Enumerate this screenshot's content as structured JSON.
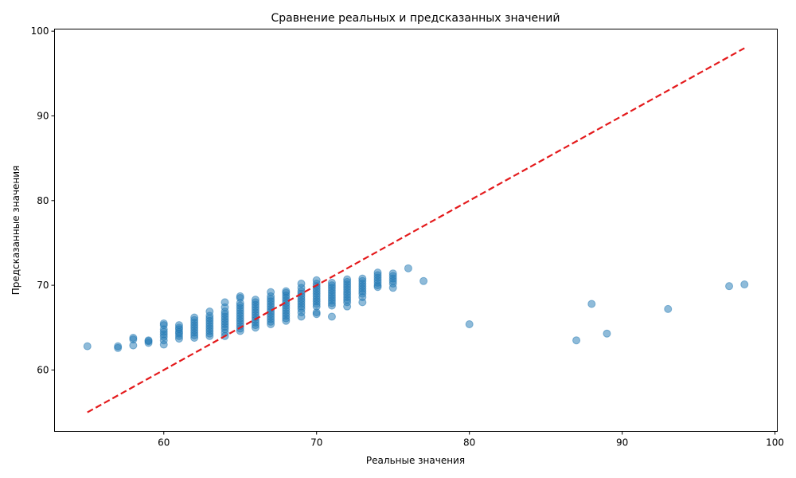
{
  "chart_data": {
    "type": "scatter",
    "title": "Сравнение реальных и предсказанных значений",
    "xlabel": "Реальные значения",
    "ylabel": "Предсказанные значения",
    "xlim": [
      52.85,
      100.15
    ],
    "ylim": [
      52.75,
      100.25
    ],
    "xticks": [
      60,
      70,
      80,
      90,
      100
    ],
    "yticks": [
      60,
      70,
      80,
      90,
      100
    ],
    "grid": false,
    "point_color": "#1f77b4",
    "line_color": "#e41a1c",
    "reference_line": {
      "style": "dashed",
      "points": [
        [
          55,
          55
        ],
        [
          98,
          98
        ]
      ]
    },
    "series": [
      {
        "points": [
          [
            55,
            62.8
          ],
          [
            57,
            62.6
          ],
          [
            57,
            62.8
          ],
          [
            58,
            62.9
          ],
          [
            58,
            63.6
          ],
          [
            58,
            63.8
          ],
          [
            59,
            63.2
          ],
          [
            59,
            63.4
          ],
          [
            59,
            63.5
          ],
          [
            60,
            63.0
          ],
          [
            60,
            63.5
          ],
          [
            60,
            63.9
          ],
          [
            60,
            64.2
          ],
          [
            60,
            64.5
          ],
          [
            60,
            64.8
          ],
          [
            60,
            65.3
          ],
          [
            60,
            65.5
          ],
          [
            61,
            63.7
          ],
          [
            61,
            64.0
          ],
          [
            61,
            64.3
          ],
          [
            61,
            64.5
          ],
          [
            61,
            64.8
          ],
          [
            61,
            65.0
          ],
          [
            61,
            65.3
          ],
          [
            62,
            63.8
          ],
          [
            62,
            64.1
          ],
          [
            62,
            64.4
          ],
          [
            62,
            64.7
          ],
          [
            62,
            65.0
          ],
          [
            62,
            65.3
          ],
          [
            62,
            65.6
          ],
          [
            62,
            65.9
          ],
          [
            62,
            66.2
          ],
          [
            63,
            64.0
          ],
          [
            63,
            64.3
          ],
          [
            63,
            64.6
          ],
          [
            63,
            64.9
          ],
          [
            63,
            65.2
          ],
          [
            63,
            65.5
          ],
          [
            63,
            65.8
          ],
          [
            63,
            66.1
          ],
          [
            63,
            66.4
          ],
          [
            63,
            66.9
          ],
          [
            64,
            64.0
          ],
          [
            64,
            64.4
          ],
          [
            64,
            64.8
          ],
          [
            64,
            65.1
          ],
          [
            64,
            65.4
          ],
          [
            64,
            65.7
          ],
          [
            64,
            66.0
          ],
          [
            64,
            66.3
          ],
          [
            64,
            66.6
          ],
          [
            64,
            66.9
          ],
          [
            64,
            67.4
          ],
          [
            64,
            68.0
          ],
          [
            65,
            64.6
          ],
          [
            65,
            64.9
          ],
          [
            65,
            65.2
          ],
          [
            65,
            65.5
          ],
          [
            65,
            65.8
          ],
          [
            65,
            66.1
          ],
          [
            65,
            66.4
          ],
          [
            65,
            66.7
          ],
          [
            65,
            67.0
          ],
          [
            65,
            67.3
          ],
          [
            65,
            67.6
          ],
          [
            65,
            67.9
          ],
          [
            65,
            68.5
          ],
          [
            65,
            68.7
          ],
          [
            66,
            65.0
          ],
          [
            66,
            65.3
          ],
          [
            66,
            65.6
          ],
          [
            66,
            65.9
          ],
          [
            66,
            66.2
          ],
          [
            66,
            66.5
          ],
          [
            66,
            66.8
          ],
          [
            66,
            67.1
          ],
          [
            66,
            67.4
          ],
          [
            66,
            67.7
          ],
          [
            66,
            68.0
          ],
          [
            66,
            68.3
          ],
          [
            67,
            65.4
          ],
          [
            67,
            65.7
          ],
          [
            67,
            66.0
          ],
          [
            67,
            66.3
          ],
          [
            67,
            66.6
          ],
          [
            67,
            66.9
          ],
          [
            67,
            67.2
          ],
          [
            67,
            67.5
          ],
          [
            67,
            67.8
          ],
          [
            67,
            68.1
          ],
          [
            67,
            68.4
          ],
          [
            67,
            68.7
          ],
          [
            67,
            69.2
          ],
          [
            68,
            65.8
          ],
          [
            68,
            66.1
          ],
          [
            68,
            66.4
          ],
          [
            68,
            66.7
          ],
          [
            68,
            67.0
          ],
          [
            68,
            67.3
          ],
          [
            68,
            67.6
          ],
          [
            68,
            67.9
          ],
          [
            68,
            68.2
          ],
          [
            68,
            68.5
          ],
          [
            68,
            68.8
          ],
          [
            68,
            69.1
          ],
          [
            68,
            69.3
          ],
          [
            69,
            66.3
          ],
          [
            69,
            66.8
          ],
          [
            69,
            67.2
          ],
          [
            69,
            67.5
          ],
          [
            69,
            67.8
          ],
          [
            69,
            68.1
          ],
          [
            69,
            68.4
          ],
          [
            69,
            68.7
          ],
          [
            69,
            69.0
          ],
          [
            69,
            69.3
          ],
          [
            69,
            69.7
          ],
          [
            69,
            70.2
          ],
          [
            70,
            66.6
          ],
          [
            70,
            66.8
          ],
          [
            70,
            67.5
          ],
          [
            70,
            67.8
          ],
          [
            70,
            68.1
          ],
          [
            70,
            68.4
          ],
          [
            70,
            68.7
          ],
          [
            70,
            69.0
          ],
          [
            70,
            69.3
          ],
          [
            70,
            69.6
          ],
          [
            70,
            69.9
          ],
          [
            70,
            70.2
          ],
          [
            70,
            70.6
          ],
          [
            71,
            66.3
          ],
          [
            71,
            67.6
          ],
          [
            71,
            67.9
          ],
          [
            71,
            68.2
          ],
          [
            71,
            68.5
          ],
          [
            71,
            68.8
          ],
          [
            71,
            69.1
          ],
          [
            71,
            69.4
          ],
          [
            71,
            69.7
          ],
          [
            71,
            70.0
          ],
          [
            71,
            70.3
          ],
          [
            72,
            67.5
          ],
          [
            72,
            68.0
          ],
          [
            72,
            68.3
          ],
          [
            72,
            68.6
          ],
          [
            72,
            68.9
          ],
          [
            72,
            69.2
          ],
          [
            72,
            69.5
          ],
          [
            72,
            69.8
          ],
          [
            72,
            70.1
          ],
          [
            72,
            70.4
          ],
          [
            72,
            70.7
          ],
          [
            73,
            68.0
          ],
          [
            73,
            68.6
          ],
          [
            73,
            69.0
          ],
          [
            73,
            69.3
          ],
          [
            73,
            69.6
          ],
          [
            73,
            69.9
          ],
          [
            73,
            70.2
          ],
          [
            73,
            70.5
          ],
          [
            73,
            70.8
          ],
          [
            74,
            69.8
          ],
          [
            74,
            70.0
          ],
          [
            74,
            70.3
          ],
          [
            74,
            70.6
          ],
          [
            74,
            70.9
          ],
          [
            74,
            71.2
          ],
          [
            74,
            71.5
          ],
          [
            75,
            69.7
          ],
          [
            75,
            70.2
          ],
          [
            75,
            70.5
          ],
          [
            75,
            70.8
          ],
          [
            75,
            71.1
          ],
          [
            75,
            71.4
          ],
          [
            76,
            72.0
          ],
          [
            77,
            70.5
          ],
          [
            80,
            65.4
          ],
          [
            87,
            63.5
          ],
          [
            88,
            67.8
          ],
          [
            89,
            64.3
          ],
          [
            93,
            67.2
          ],
          [
            97,
            69.9
          ],
          [
            98,
            70.1
          ]
        ]
      }
    ]
  }
}
